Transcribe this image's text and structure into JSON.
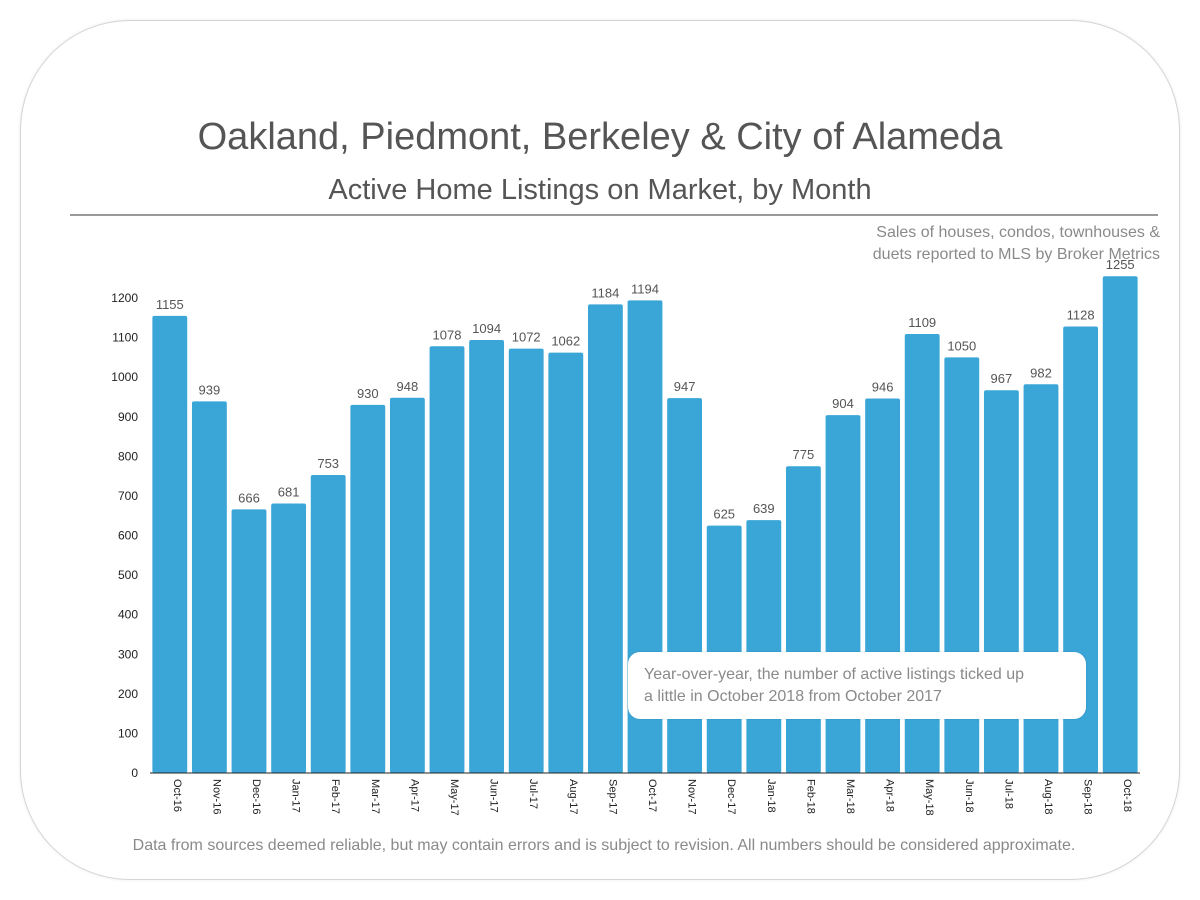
{
  "colors": {
    "bar": "#3aa6d8",
    "text": "#555555",
    "muted": "#8a8a8a"
  },
  "title": "Oakland, Piedmont, Berkeley & City of Alameda",
  "subtitle": "Active Home Listings on Market, by Month",
  "source_note": [
    "Sales of houses, condos, townhouses &",
    "duets reported to MLS by Broker Metrics"
  ],
  "callout": [
    "Year-over-year, the number of active listings ticked up",
    "a little in October 2018 from October 2017"
  ],
  "footer": "Data from sources deemed reliable, but may contain errors and is subject to revision.  All numbers should be considered approximate.",
  "chart_data": {
    "type": "bar",
    "categories": [
      "Oct-16",
      "Nov-16",
      "Dec-16",
      "Jan-17",
      "Feb-17",
      "Mar-17",
      "Apr-17",
      "May-17",
      "Jun-17",
      "Jul-17",
      "Aug-17",
      "Sep-17",
      "Oct-17",
      "Nov-17",
      "Dec-17",
      "Jan-18",
      "Feb-18",
      "Mar-18",
      "Apr-18",
      "May-18",
      "Jun-18",
      "Jul-18",
      "Aug-18",
      "Sep-18",
      "Oct-18"
    ],
    "values": [
      1155,
      939,
      666,
      681,
      753,
      930,
      948,
      1078,
      1094,
      1072,
      1062,
      1184,
      1194,
      947,
      625,
      639,
      775,
      904,
      946,
      1109,
      1050,
      967,
      982,
      1128,
      1255
    ],
    "title": "Oakland, Piedmont, Berkeley & City of Alameda",
    "subtitle": "Active Home Listings on Market, by Month",
    "xlabel": "",
    "ylabel": "",
    "ylim": [
      0,
      1200
    ],
    "yticks": [
      0,
      100,
      200,
      300,
      400,
      500,
      600,
      700,
      800,
      900,
      1000,
      1100,
      1200
    ],
    "grid": false,
    "legend": "none"
  }
}
